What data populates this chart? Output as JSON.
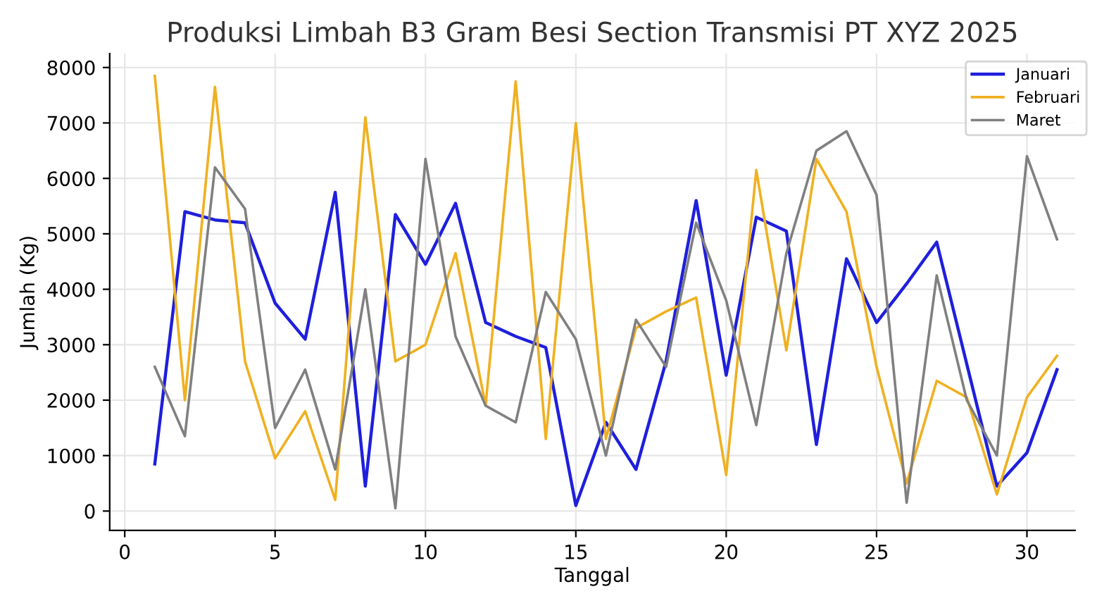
{
  "chart_data": {
    "type": "line",
    "title": "Produksi Limbah B3 Gram Besi Section Transmisi PT XYZ 2025",
    "xlabel": "Tanggal",
    "ylabel": "Jumlah (Kg)",
    "x": [
      1,
      2,
      3,
      4,
      5,
      6,
      7,
      8,
      9,
      10,
      11,
      12,
      13,
      14,
      15,
      16,
      17,
      18,
      19,
      20,
      21,
      22,
      23,
      24,
      25,
      26,
      27,
      28,
      29,
      30,
      31
    ],
    "series": [
      {
        "name": "Januari",
        "color": "#1f1fdd",
        "values": [
          850,
          5400,
          5250,
          5200,
          3750,
          3100,
          5750,
          450,
          5350,
          4450,
          5550,
          3400,
          3150,
          2950,
          100,
          1600,
          750,
          2700,
          5600,
          2450,
          5300,
          5050,
          1200,
          4550,
          3400,
          4100,
          4850,
          2650,
          450,
          1050,
          2550
        ]
      },
      {
        "name": "Februari",
        "color": "#f0b020",
        "values": [
          7850,
          2000,
          7650,
          2700,
          950,
          1800,
          200,
          7100,
          2700,
          3000,
          4650,
          1900,
          7750,
          1300,
          7000,
          1300,
          3300,
          3600,
          3850,
          650,
          6150,
          2900,
          6350,
          5400,
          2600,
          500,
          2350,
          2050,
          300,
          2050,
          2800
        ]
      },
      {
        "name": "Maret",
        "color": "#808080",
        "values": [
          2600,
          1350,
          6200,
          5450,
          1500,
          2550,
          750,
          4000,
          50,
          6350,
          3150,
          1900,
          1600,
          3950,
          3100,
          1000,
          3450,
          2600,
          5200,
          3800,
          1550,
          4650,
          6500,
          6850,
          5700,
          150,
          4250,
          2000,
          1000,
          6400,
          4900
        ]
      }
    ],
    "xlim": [
      -0.5,
      31.6
    ],
    "ylim": [
      -350,
      8250
    ],
    "xticks": [
      0,
      5,
      10,
      15,
      20,
      25,
      30
    ],
    "yticks": [
      0,
      1000,
      2000,
      3000,
      4000,
      5000,
      6000,
      7000,
      8000
    ],
    "grid": true,
    "legend": "top right",
    "marker": "none",
    "line_style": "solid"
  }
}
